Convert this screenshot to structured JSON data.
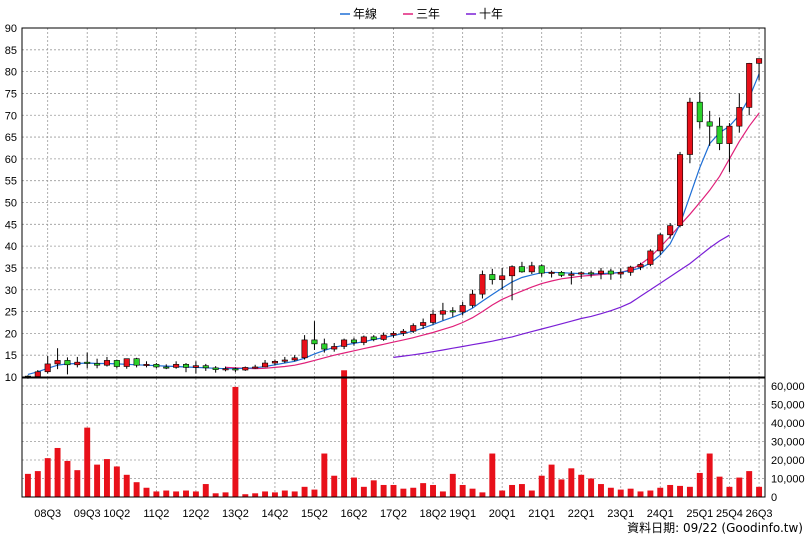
{
  "chart_data": {
    "type": "candlestick",
    "legend": [
      {
        "label": "年線",
        "color": "#1f6fd6"
      },
      {
        "label": "三年",
        "color": "#e0207a"
      },
      {
        "label": "十年",
        "color": "#7b1fd6"
      }
    ],
    "quarters": [
      "08Q1",
      "08Q2",
      "08Q3",
      "08Q4",
      "09Q1",
      "09Q2",
      "09Q3",
      "09Q4",
      "10Q1",
      "10Q2",
      "10Q3",
      "10Q4",
      "11Q1",
      "11Q2",
      "11Q3",
      "11Q4",
      "12Q1",
      "12Q2",
      "12Q3",
      "12Q4",
      "13Q1",
      "13Q2",
      "13Q3",
      "13Q4",
      "14Q1",
      "14Q2",
      "14Q3",
      "14Q4",
      "15Q1",
      "15Q2",
      "15Q3",
      "15Q4",
      "16Q1",
      "16Q2",
      "16Q3",
      "16Q4",
      "17Q1",
      "17Q2",
      "17Q3",
      "17Q4",
      "18Q1",
      "18Q2",
      "18Q3",
      "18Q4",
      "19Q1",
      "19Q2",
      "19Q3",
      "19Q4",
      "20Q1",
      "20Q2",
      "20Q3",
      "20Q4",
      "21Q1",
      "21Q2",
      "21Q3",
      "21Q4",
      "22Q1",
      "22Q2",
      "22Q3",
      "22Q4",
      "23Q1",
      "23Q2",
      "23Q3",
      "23Q4",
      "24Q1",
      "24Q2",
      "24Q3",
      "24Q4",
      "25Q1",
      "25Q2",
      "25Q3",
      "25Q4",
      "26Q1",
      "26Q2",
      "26Q3"
    ],
    "x_tick_labels": [
      "08Q3",
      "09Q3",
      "10Q2",
      "11Q2",
      "12Q2",
      "13Q2",
      "14Q2",
      "15Q2",
      "16Q2",
      "17Q2",
      "18Q2",
      "19Q1",
      "20Q1",
      "21Q1",
      "22Q1",
      "23Q1",
      "24Q1",
      "25Q1",
      "25Q4",
      "26Q3"
    ],
    "x_tick_index": [
      2,
      6,
      9,
      13,
      17,
      21,
      25,
      29,
      33,
      37,
      41,
      44,
      48,
      52,
      56,
      60,
      64,
      68,
      71,
      74
    ],
    "price_axis": {
      "min": 10,
      "max": 90,
      "ticks": [
        10,
        15,
        20,
        25,
        30,
        35,
        40,
        45,
        50,
        55,
        60,
        65,
        70,
        75,
        80,
        85,
        90
      ]
    },
    "volume_axis": {
      "min": 0,
      "max": 60000,
      "ticks": [
        "0",
        "10,000",
        "20,000",
        "30,000",
        "40,000",
        "50,000",
        "60,000"
      ]
    },
    "ohlc": [
      [
        10.2,
        10.4,
        9.6,
        10.1
      ],
      [
        10.1,
        11.6,
        10.0,
        11.2
      ],
      [
        11.2,
        14.8,
        10.8,
        13.0
      ],
      [
        13.0,
        16.6,
        11.8,
        13.8
      ],
      [
        13.8,
        14.5,
        10.6,
        12.8
      ],
      [
        12.8,
        14.6,
        12.2,
        13.4
      ],
      [
        13.4,
        15.6,
        12.0,
        13.1
      ],
      [
        13.1,
        14.2,
        12.0,
        12.7
      ],
      [
        12.7,
        14.6,
        12.4,
        13.8
      ],
      [
        13.8,
        14.0,
        12.0,
        12.4
      ],
      [
        12.4,
        14.2,
        11.9,
        14.2
      ],
      [
        14.2,
        14.4,
        12.2,
        12.7
      ],
      [
        12.7,
        13.6,
        12.2,
        12.9
      ],
      [
        12.9,
        13.2,
        12.0,
        12.3
      ],
      [
        12.3,
        12.9,
        11.8,
        12.2
      ],
      [
        12.2,
        13.6,
        11.9,
        12.9
      ],
      [
        12.9,
        13.2,
        11.1,
        12.2
      ],
      [
        12.2,
        13.6,
        10.8,
        12.6
      ],
      [
        12.6,
        13.0,
        11.4,
        12.1
      ],
      [
        12.1,
        12.5,
        11.0,
        11.7
      ],
      [
        11.7,
        12.4,
        11.3,
        11.9
      ],
      [
        11.9,
        12.2,
        11.1,
        11.6
      ],
      [
        11.6,
        12.4,
        11.4,
        12.2
      ],
      [
        12.2,
        12.8,
        11.9,
        12.3
      ],
      [
        12.3,
        13.9,
        12.2,
        13.2
      ],
      [
        13.2,
        14.0,
        12.7,
        13.6
      ],
      [
        13.6,
        14.6,
        13.2,
        13.9
      ],
      [
        13.9,
        15.0,
        13.6,
        14.4
      ],
      [
        14.4,
        19.6,
        14.0,
        18.5
      ],
      [
        18.5,
        22.8,
        16.2,
        17.6
      ],
      [
        17.6,
        18.8,
        15.6,
        16.4
      ],
      [
        16.4,
        17.8,
        15.8,
        17.0
      ],
      [
        17.0,
        18.8,
        16.4,
        18.5
      ],
      [
        18.5,
        19.0,
        17.2,
        17.9
      ],
      [
        17.9,
        19.5,
        17.3,
        19.2
      ],
      [
        19.2,
        19.6,
        18.2,
        18.6
      ],
      [
        18.6,
        20.2,
        18.3,
        19.6
      ],
      [
        19.6,
        20.5,
        19.0,
        20.0
      ],
      [
        20.0,
        21.0,
        19.4,
        20.5
      ],
      [
        20.5,
        22.3,
        20.1,
        21.8
      ],
      [
        21.8,
        23.4,
        21.0,
        22.5
      ],
      [
        22.5,
        25.4,
        22.0,
        24.4
      ],
      [
        24.4,
        27.0,
        23.0,
        25.2
      ],
      [
        25.2,
        26.0,
        23.8,
        24.9
      ],
      [
        24.9,
        27.2,
        24.1,
        26.4
      ],
      [
        26.4,
        30.0,
        25.9,
        29.0
      ],
      [
        29.0,
        34.4,
        28.0,
        33.5
      ],
      [
        33.5,
        34.8,
        31.2,
        32.3
      ],
      [
        32.3,
        35.0,
        30.0,
        33.2
      ],
      [
        33.2,
        35.6,
        27.6,
        35.3
      ],
      [
        35.3,
        36.4,
        33.9,
        34.1
      ],
      [
        34.1,
        36.4,
        33.6,
        35.5
      ],
      [
        35.5,
        35.8,
        33.0,
        33.8
      ],
      [
        33.8,
        34.4,
        32.8,
        34.0
      ],
      [
        34.0,
        34.3,
        32.9,
        33.3
      ],
      [
        33.3,
        34.3,
        31.2,
        33.6
      ],
      [
        33.6,
        34.2,
        32.5,
        33.9
      ],
      [
        33.9,
        34.4,
        32.8,
        33.7
      ],
      [
        33.7,
        35.0,
        32.4,
        34.3
      ],
      [
        34.3,
        34.8,
        32.3,
        33.6
      ],
      [
        33.6,
        34.9,
        32.6,
        34.0
      ],
      [
        34.0,
        35.5,
        33.2,
        35.2
      ],
      [
        35.2,
        36.2,
        34.5,
        35.8
      ],
      [
        35.8,
        39.3,
        35.4,
        38.9
      ],
      [
        38.9,
        43.0,
        38.0,
        42.6
      ],
      [
        42.6,
        45.3,
        41.7,
        44.7
      ],
      [
        44.7,
        61.6,
        44.3,
        61.0
      ],
      [
        61.0,
        74.0,
        59.0,
        73.0
      ],
      [
        73.0,
        75.3,
        67.0,
        68.5
      ],
      [
        68.5,
        71.0,
        63.0,
        67.5
      ],
      [
        67.5,
        69.5,
        62.0,
        63.5
      ],
      [
        63.5,
        68.2,
        57.0,
        67.5
      ],
      [
        67.5,
        75.0,
        66.0,
        71.8
      ],
      [
        71.8,
        82.0,
        70.0,
        81.9
      ],
      [
        81.9,
        83.0,
        78.0,
        83.0
      ]
    ],
    "volume": [
      12500,
      14000,
      21000,
      26500,
      19500,
      14500,
      37500,
      17500,
      20500,
      16500,
      12000,
      8000,
      5000,
      3000,
      3500,
      3000,
      3500,
      3000,
      7000,
      2000,
      2500,
      59500,
      1500,
      2000,
      3000,
      2500,
      3500,
      3000,
      5500,
      4000,
      23500,
      11500,
      68500,
      10500,
      5500,
      9000,
      6500,
      6500,
      4500,
      5000,
      7500,
      6500,
      3000,
      12500,
      6500,
      4500,
      2500,
      23500,
      3500,
      6500,
      7000,
      3500,
      11500,
      17500,
      9500,
      15500,
      12000,
      10000,
      7000,
      5000,
      4000,
      4500,
      3000,
      3500,
      5000,
      6500,
      6000,
      5500,
      13000,
      23500,
      11000,
      5500,
      10500,
      14000,
      5500
    ],
    "ma_year_start": 0,
    "ma_year": [
      10.6,
      11.2,
      12.0,
      12.7,
      13.0,
      13.1,
      13.2,
      13.1,
      13.1,
      13.0,
      12.9,
      12.8,
      12.7,
      12.6,
      12.5,
      12.4,
      12.3,
      12.2,
      12.1,
      12.0,
      11.9,
      11.9,
      12.0,
      12.1,
      12.4,
      12.8,
      13.2,
      13.6,
      14.3,
      15.3,
      16.1,
      16.8,
      17.3,
      17.7,
      18.1,
      18.6,
      19.0,
      19.5,
      20.0,
      20.5,
      21.2,
      22.0,
      22.9,
      23.7,
      24.6,
      25.8,
      27.4,
      28.9,
      30.4,
      31.8,
      32.8,
      33.4,
      33.9,
      34.0,
      33.9,
      33.8,
      33.7,
      33.6,
      33.7,
      33.8,
      34.0,
      34.4,
      35.0,
      36.1,
      38.0,
      40.5,
      45.0,
      51.5,
      58.0,
      63.5,
      66.0,
      67.5,
      70.0,
      74.0,
      79.5
    ],
    "ma_3year_start": 20,
    "ma_3year": [
      12.2,
      12.1,
      12.0,
      11.9,
      12.0,
      12.2,
      12.4,
      12.7,
      13.2,
      13.8,
      14.4,
      15.0,
      15.5,
      16.0,
      16.5,
      17.0,
      17.5,
      18.0,
      18.5,
      19.0,
      19.6,
      20.2,
      20.9,
      21.6,
      22.5,
      23.6,
      25.0,
      26.5,
      27.8,
      28.8,
      29.7,
      30.6,
      31.4,
      32.0,
      32.5,
      32.8,
      33.1,
      33.3,
      33.5,
      33.7,
      34.0,
      34.6,
      35.8,
      37.5,
      39.8,
      42.2,
      44.8,
      47.3,
      50.0,
      52.8,
      56.0,
      60.0,
      64.0,
      67.5,
      70.5
    ],
    "ma_10year_start": 37,
    "ma_10year": [
      14.5,
      14.8,
      15.1,
      15.4,
      15.8,
      16.2,
      16.6,
      17.0,
      17.4,
      17.8,
      18.2,
      18.7,
      19.2,
      19.8,
      20.4,
      21.0,
      21.6,
      22.2,
      22.8,
      23.4,
      23.9,
      24.5,
      25.2,
      26.0,
      27.0,
      28.5,
      30.0,
      31.5,
      33.0,
      34.5,
      36.0,
      37.8,
      39.6,
      41.2,
      42.5
    ]
  },
  "footer": {
    "source": "資料日期: 09/22  (Goodinfo.tw)"
  },
  "colors": {
    "up": "#e8101a",
    "down": "#2bd12b",
    "volume": "#e8101a",
    "grid": "#9a9a9a",
    "ma_year": "#1f6fd6",
    "ma_3year": "#e0207a",
    "ma_10year": "#7b1fd6"
  }
}
